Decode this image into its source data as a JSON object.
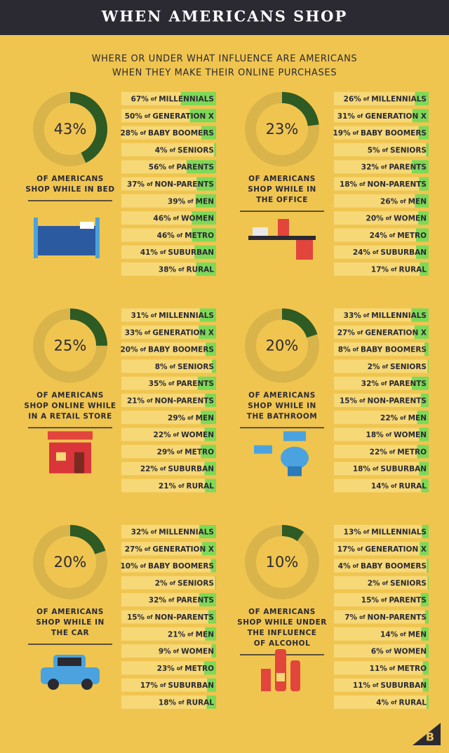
{
  "header": {
    "title": "WHEN AMERICANS SHOP",
    "subtitle": [
      "WHERE OR UNDER WHAT INFLUENCE ARE AMERICANS",
      "WHEN THEY MAKE THEIR ONLINE PURCHASES"
    ]
  },
  "connector": "of",
  "groups": [
    "MILLENNIALS",
    "GENERATION X",
    "BABY BOOMERS",
    "SENIORS",
    "PARENTS",
    "NON-PARENTS",
    "MEN",
    "WOMEN",
    "METRO",
    "SUBURBAN",
    "RURAL"
  ],
  "panels": [
    {
      "percent": 43,
      "percent_label": "43%",
      "caption": [
        "OF AMERICANS",
        "SHOP WHILE IN BED"
      ],
      "values": [
        67,
        50,
        28,
        4,
        56,
        37,
        39,
        46,
        46,
        41,
        38
      ],
      "value_labels": [
        "67%",
        "50%",
        "28%",
        "4%",
        "56%",
        "37%",
        "39%",
        "46%",
        "46%",
        "41%",
        "38%"
      ]
    },
    {
      "percent": 23,
      "percent_label": "23%",
      "caption": [
        "OF AMERICANS",
        "SHOP WHILE IN",
        "THE OFFICE"
      ],
      "values": [
        26,
        31,
        19,
        5,
        32,
        18,
        26,
        20,
        24,
        24,
        17
      ],
      "value_labels": [
        "26%",
        "31%",
        "19%",
        "5%",
        "32%",
        "18%",
        "26%",
        "20%",
        "24%",
        "24%",
        "17%"
      ]
    },
    {
      "percent": 25,
      "percent_label": "25%",
      "caption": [
        "OF AMERICANS",
        "SHOP ONLINE WHILE",
        "IN A RETAIL STORE"
      ],
      "values": [
        31,
        33,
        20,
        8,
        35,
        21,
        29,
        22,
        29,
        22,
        21
      ],
      "value_labels": [
        "31%",
        "33%",
        "20%",
        "8%",
        "35%",
        "21%",
        "29%",
        "22%",
        "29%",
        "22%",
        "21%"
      ]
    },
    {
      "percent": 20,
      "percent_label": "20%",
      "caption": [
        "OF AMERICANS",
        "SHOP WHILE IN",
        "THE BATHROOM"
      ],
      "values": [
        33,
        27,
        8,
        2,
        32,
        15,
        22,
        18,
        22,
        18,
        14
      ],
      "value_labels": [
        "33%",
        "27%",
        "8%",
        "2%",
        "32%",
        "15%",
        "22%",
        "18%",
        "22%",
        "18%",
        "14%"
      ]
    },
    {
      "percent": 20,
      "percent_label": "20%",
      "caption": [
        "OF AMERICANS",
        "SHOP WHILE IN",
        "THE CAR"
      ],
      "values": [
        32,
        27,
        10,
        2,
        32,
        15,
        21,
        9,
        23,
        17,
        18
      ],
      "value_labels": [
        "32%",
        "27%",
        "10%",
        "2%",
        "32%",
        "15%",
        "21%",
        "9%",
        "23%",
        "17%",
        "18%"
      ]
    },
    {
      "percent": 10,
      "percent_label": "10%",
      "caption": [
        "OF AMERICANS",
        "SHOP WHILE UNDER",
        "THE INFLUENCE",
        "OF ALCOHOL"
      ],
      "values": [
        13,
        17,
        4,
        2,
        15,
        7,
        14,
        6,
        11,
        11,
        4
      ],
      "value_labels": [
        "13%",
        "17%",
        "4%",
        "2%",
        "15%",
        "7%",
        "14%",
        "6%",
        "11%",
        "11%",
        "4%"
      ]
    }
  ],
  "logo": "B"
}
